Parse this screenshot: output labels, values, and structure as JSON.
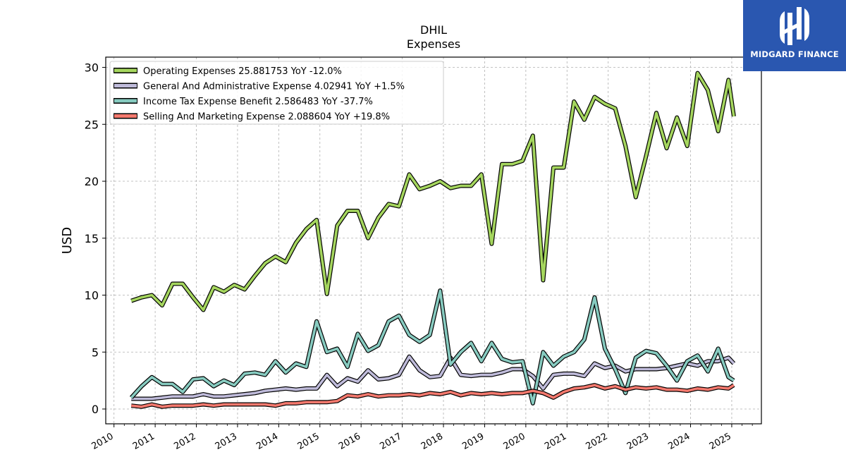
{
  "logo": {
    "text": "MIDGARD FINANCE",
    "mark": "stylized-H-logo"
  },
  "chart_data": {
    "type": "line",
    "title": "DHIL",
    "subtitle": "Expenses",
    "xlabel": "",
    "ylabel": "USD",
    "xlim": [
      2009.8,
      2025.72
    ],
    "ylim": [
      -1.3,
      30.9
    ],
    "yticks": [
      0,
      5,
      10,
      15,
      20,
      25,
      30
    ],
    "xticks": [
      "2010",
      "2011",
      "2012",
      "2013",
      "2014",
      "2015",
      "2016",
      "2017",
      "2018",
      "2019",
      "2020",
      "2021",
      "2022",
      "2023",
      "2024",
      "2025"
    ],
    "grid": true,
    "legend_position": "top-left",
    "x": [
      2010.42,
      2010.67,
      2010.92,
      2011.17,
      2011.42,
      2011.67,
      2011.92,
      2012.17,
      2012.42,
      2012.67,
      2012.92,
      2013.17,
      2013.42,
      2013.67,
      2013.92,
      2014.17,
      2014.42,
      2014.67,
      2014.92,
      2015.17,
      2015.42,
      2015.67,
      2015.92,
      2016.17,
      2016.42,
      2016.67,
      2016.92,
      2017.17,
      2017.42,
      2017.67,
      2017.92,
      2018.17,
      2018.42,
      2018.67,
      2018.92,
      2019.17,
      2019.42,
      2019.67,
      2019.92,
      2020.17,
      2020.42,
      2020.67,
      2020.92,
      2021.17,
      2021.42,
      2021.67,
      2021.92,
      2022.17,
      2022.42,
      2022.67,
      2022.92,
      2023.17,
      2023.42,
      2023.67,
      2023.92,
      2024.17,
      2024.42,
      2024.67,
      2024.92,
      2025.05
    ],
    "series": [
      {
        "name": "Operating Expenses  25.881753 YoY -12.0%",
        "color": "#a5d65e",
        "values": [
          9.5,
          9.8,
          10.0,
          9.1,
          11.0,
          11.0,
          9.8,
          8.7,
          10.7,
          10.3,
          10.9,
          10.5,
          11.7,
          12.8,
          13.4,
          12.9,
          14.6,
          15.8,
          16.6,
          10.1,
          16.1,
          17.4,
          17.4,
          15.0,
          16.8,
          18.0,
          17.8,
          20.6,
          19.3,
          19.6,
          20.0,
          19.4,
          19.6,
          19.6,
          20.6,
          14.5,
          21.5,
          21.5,
          21.8,
          24.0,
          11.3,
          21.2,
          21.2,
          27.0,
          25.4,
          27.4,
          26.8,
          26.4,
          23.1,
          18.6,
          22.2,
          26.0,
          22.9,
          25.6,
          23.1,
          29.5,
          28.0,
          24.4,
          28.9,
          25.7
        ]
      },
      {
        "name": "General And Administrative Expense  4.02941 YoY +1.5%",
        "color": "#bfbbda",
        "values": [
          0.9,
          0.9,
          0.9,
          1.0,
          1.1,
          1.1,
          1.1,
          1.3,
          1.1,
          1.1,
          1.2,
          1.3,
          1.4,
          1.6,
          1.7,
          1.8,
          1.7,
          1.8,
          1.8,
          3.0,
          2.0,
          2.7,
          2.4,
          3.4,
          2.6,
          2.7,
          3.0,
          4.6,
          3.4,
          2.8,
          2.9,
          4.5,
          3.0,
          2.9,
          3.0,
          3.0,
          3.2,
          3.5,
          3.5,
          2.9,
          1.8,
          3.0,
          3.1,
          3.1,
          2.9,
          4.0,
          3.6,
          3.8,
          3.3,
          3.5,
          3.5,
          3.5,
          3.6,
          3.8,
          4.0,
          3.8,
          4.2,
          4.2,
          4.5,
          4.0
        ]
      },
      {
        "name": "Income Tax Expense Benefit  2.586483 YoY -37.7%",
        "color": "#87cbc0",
        "values": [
          1.0,
          2.0,
          2.8,
          2.2,
          2.2,
          1.5,
          2.6,
          2.7,
          2.0,
          2.5,
          2.1,
          3.1,
          3.2,
          3.0,
          4.2,
          3.2,
          4.0,
          3.7,
          7.7,
          5.0,
          5.3,
          3.7,
          6.6,
          5.1,
          5.6,
          7.7,
          8.2,
          6.5,
          5.9,
          6.5,
          10.4,
          3.9,
          5.0,
          5.8,
          4.2,
          5.8,
          4.4,
          4.1,
          4.2,
          0.5,
          5.0,
          3.8,
          4.6,
          5.0,
          6.1,
          9.8,
          5.3,
          3.5,
          1.4,
          4.5,
          5.1,
          4.9,
          3.8,
          2.5,
          4.2,
          4.7,
          3.3,
          5.3,
          2.8,
          2.5
        ]
      },
      {
        "name": "Selling And Marketing Expense  2.088604 YoY +19.8%",
        "color": "#f4796e",
        "values": [
          0.3,
          0.2,
          0.4,
          0.2,
          0.3,
          0.3,
          0.3,
          0.4,
          0.3,
          0.4,
          0.4,
          0.4,
          0.4,
          0.4,
          0.3,
          0.5,
          0.5,
          0.6,
          0.6,
          0.6,
          0.7,
          1.2,
          1.1,
          1.3,
          1.1,
          1.2,
          1.2,
          1.3,
          1.2,
          1.4,
          1.3,
          1.5,
          1.2,
          1.4,
          1.3,
          1.4,
          1.3,
          1.4,
          1.4,
          1.6,
          1.4,
          1.0,
          1.5,
          1.8,
          1.9,
          2.1,
          1.8,
          2.0,
          1.7,
          1.9,
          1.8,
          1.9,
          1.7,
          1.7,
          1.6,
          1.8,
          1.7,
          1.9,
          1.8,
          2.1
        ]
      }
    ]
  }
}
